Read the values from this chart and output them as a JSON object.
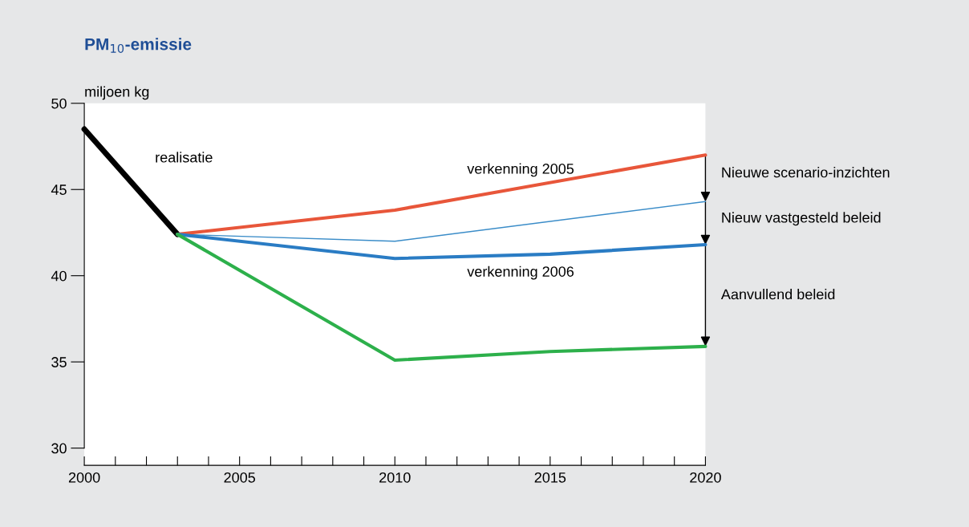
{
  "chart_data": {
    "type": "line",
    "title": "PM$_{10}$-emissie",
    "ylabel": "miljoen kg",
    "series": [
      {
        "name": "realisatie",
        "color": "#000000",
        "x": [
          2000,
          2003
        ],
        "values": [
          48.5,
          42.4
        ]
      },
      {
        "name": "verkenning 2005",
        "color": "#e8563a",
        "x": [
          2003,
          2010,
          2020
        ],
        "values": [
          42.4,
          43.8,
          47.0
        ]
      },
      {
        "color": "#3a8cc8",
        "x": [
          2003,
          2010,
          2020
        ],
        "values": [
          42.4,
          42.0,
          44.3
        ]
      },
      {
        "name": "verkenning 2006",
        "color": "#2a7cc4",
        "x": [
          2003,
          2010,
          2015,
          2020
        ],
        "values": [
          42.4,
          41.0,
          41.25,
          41.8
        ]
      },
      {
        "color": "#2db04b",
        "x": [
          2003,
          2010,
          2015,
          2020
        ],
        "values": [
          42.4,
          35.1,
          35.6,
          35.9
        ]
      }
    ],
    "annotations": [
      "Nieuwe scenario-inzichten",
      "Nieuw vastgesteld beleid",
      "Aanvullend beleid"
    ],
    "xlim": [
      2000,
      2020
    ],
    "ylim": [
      29,
      50
    ],
    "xticks": [
      2000,
      {
        "value": 2001,
        "label": null
      },
      {
        "value": 2002,
        "label": null
      },
      {
        "value": 2003,
        "label": null
      },
      {
        "value": 2004,
        "label": null
      },
      2005,
      {
        "value": 2006,
        "label": null
      },
      {
        "value": 2007,
        "label": null
      },
      {
        "value": 2008,
        "label": null
      },
      {
        "value": 2009,
        "label": null
      },
      2010,
      {
        "value": 2011,
        "label": null
      },
      {
        "value": 2012,
        "label": null
      },
      {
        "value": 2013,
        "label": null
      },
      {
        "value": 2014,
        "label": null
      },
      2015,
      {
        "value": 2016,
        "label": null
      },
      {
        "value": 2017,
        "label": null
      },
      {
        "value": 2018,
        "label": null
      },
      {
        "value": 2019,
        "label": null
      },
      2020
    ],
    "yticks": [
      30,
      35,
      40,
      45,
      50
    ],
    "grid": false,
    "legend": false
  }
}
